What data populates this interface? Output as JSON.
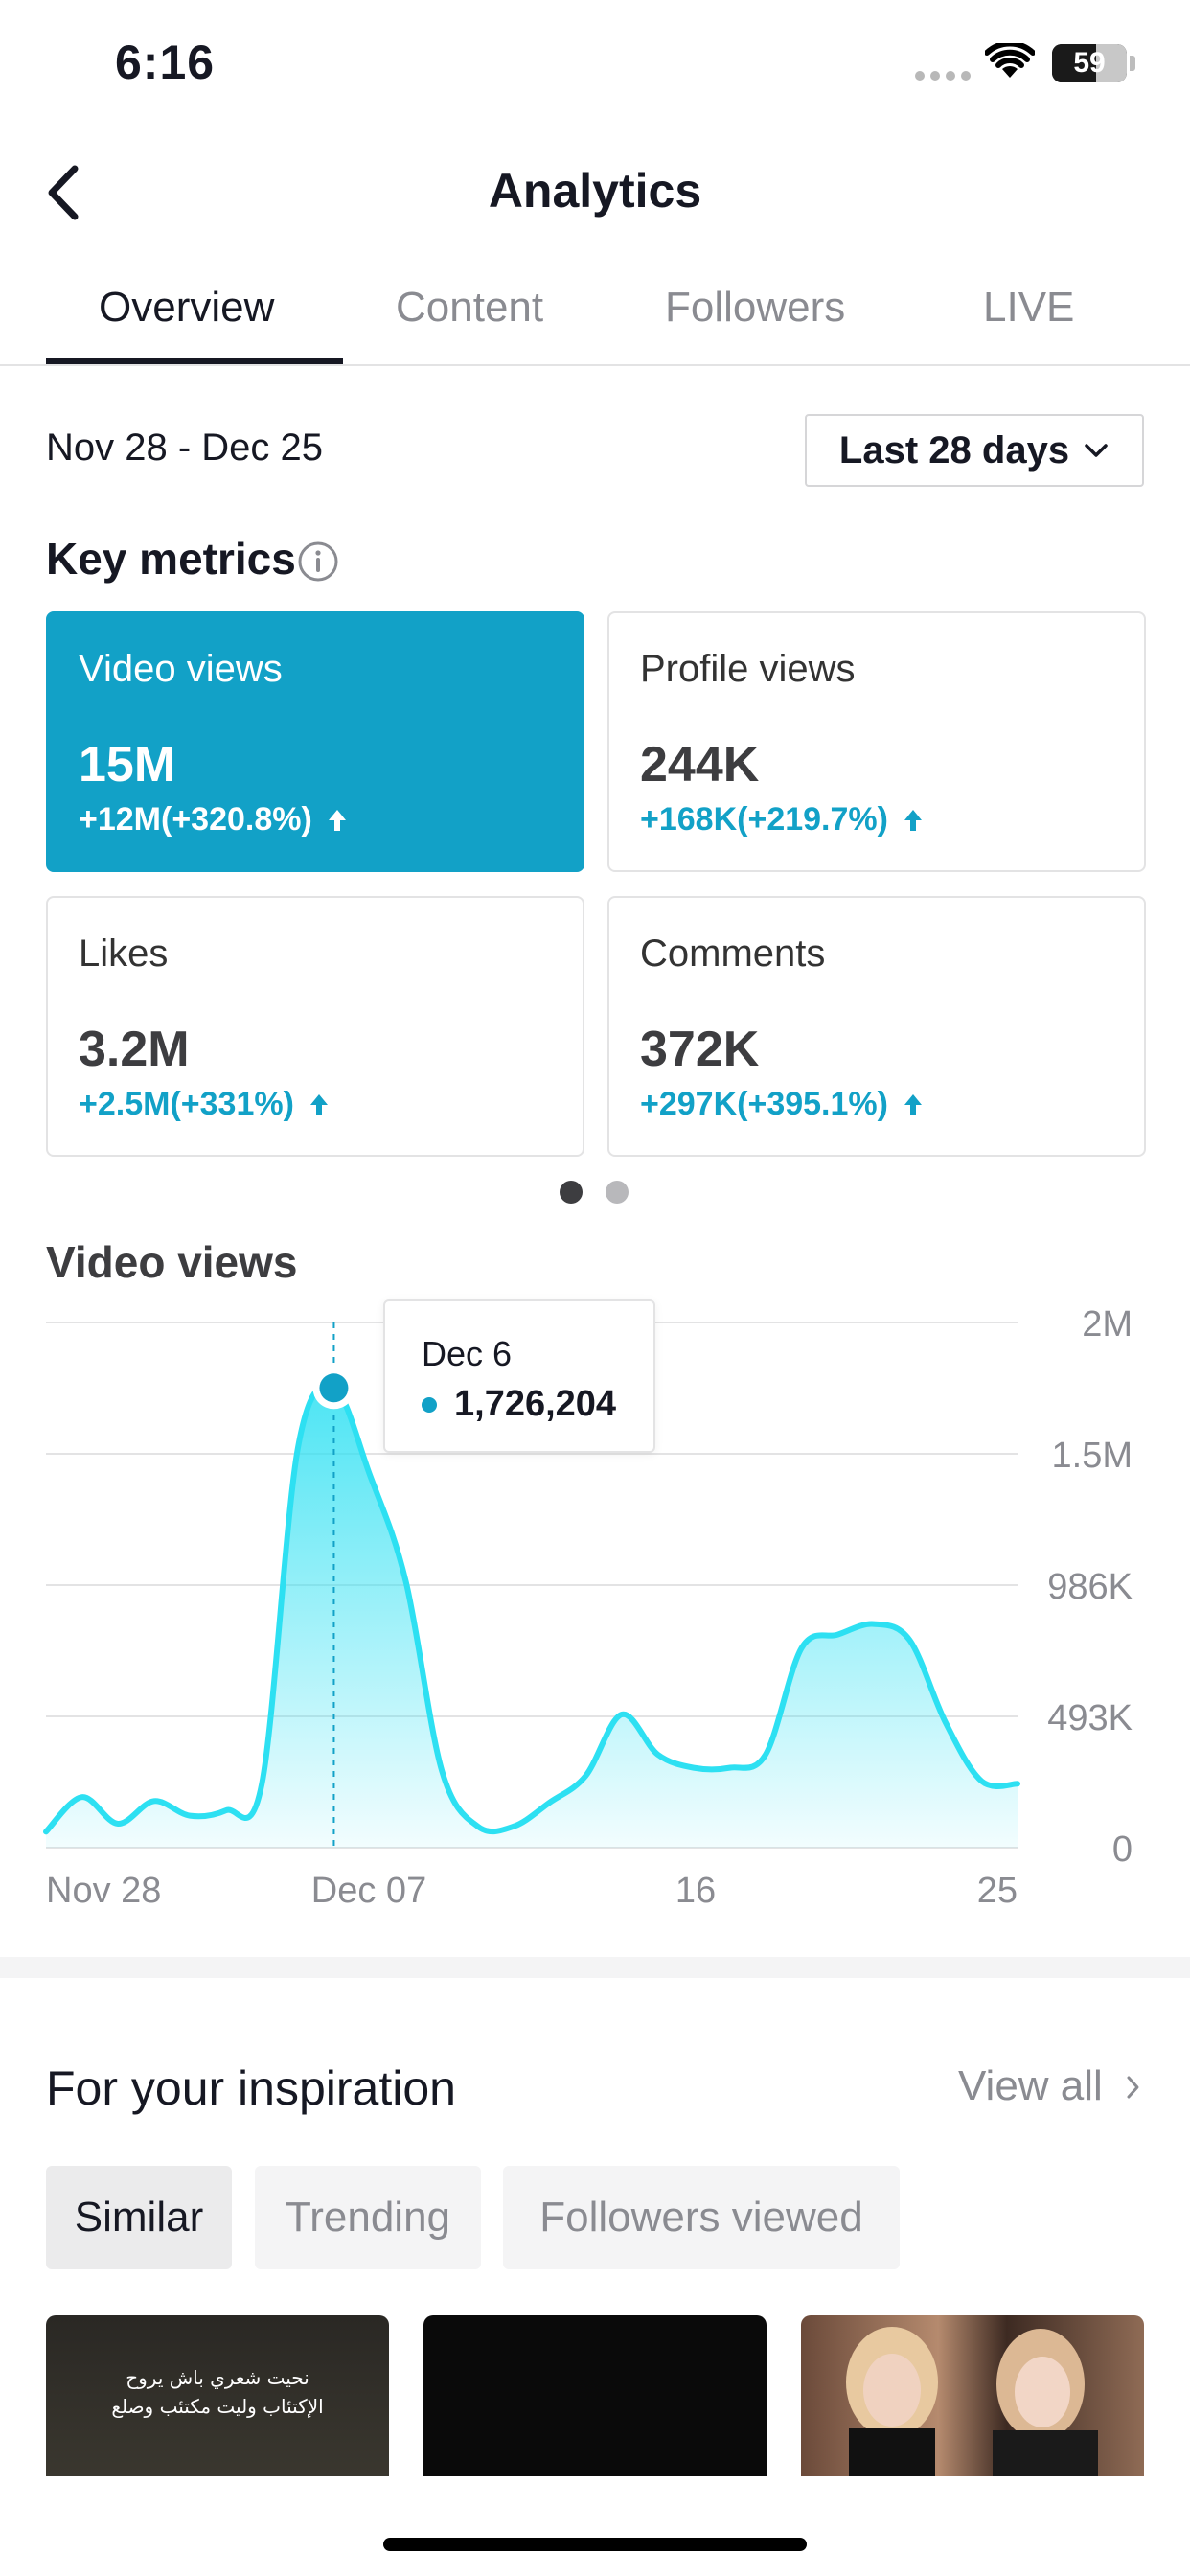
{
  "status_bar": {
    "time": "6:16",
    "battery_level": "59",
    "battery_percent": 59
  },
  "header": {
    "title": "Analytics"
  },
  "tabs": [
    {
      "label": "Overview",
      "active": true
    },
    {
      "label": "Content",
      "active": false
    },
    {
      "label": "Followers",
      "active": false
    },
    {
      "label": "LIVE",
      "active": false
    }
  ],
  "date_range": "Nov 28 - Dec 25",
  "period_select": {
    "value": "Last 28 days"
  },
  "key_metrics": {
    "title": "Key metrics",
    "cards": [
      {
        "label": "Video views",
        "value": "15M",
        "change": "+12M(+320.8%)",
        "selected": true
      },
      {
        "label": "Profile views",
        "value": "244K",
        "change": "+168K(+219.7%)",
        "selected": false
      },
      {
        "label": "Likes",
        "value": "3.2M",
        "change": "+2.5M(+331%)",
        "selected": false
      },
      {
        "label": "Comments",
        "value": "372K",
        "change": "+297K(+395.1%)",
        "selected": false
      }
    ],
    "pager": {
      "pages": 2,
      "current": 1
    }
  },
  "chart_section": {
    "title": "Video views"
  },
  "chart_data": {
    "type": "area",
    "title": "Video views",
    "x": [
      "Nov 28",
      "Nov 29",
      "Nov 30",
      "Dec 01",
      "Dec 02",
      "Dec 03",
      "Dec 04",
      "Dec 05",
      "Dec 06",
      "Dec 07",
      "Dec 08",
      "Dec 09",
      "Dec 10",
      "Dec 11",
      "Dec 12",
      "Dec 13",
      "Dec 14",
      "Dec 15",
      "Dec 16",
      "Dec 17",
      "Dec 18",
      "Dec 19",
      "Dec 20",
      "Dec 21",
      "Dec 22",
      "Dec 23",
      "Dec 24",
      "Dec 25"
    ],
    "series": [
      {
        "values": [
          60000,
          190000,
          90000,
          175000,
          120000,
          140000,
          240000,
          1500000,
          1726204,
          1400000,
          1000000,
          290000,
          80000,
          80000,
          170000,
          270000,
          500000,
          350000,
          300000,
          300000,
          350000,
          750000,
          800000,
          840000,
          780000,
          470000,
          250000,
          240000
        ]
      }
    ],
    "x_ticks": [
      "Nov 28",
      "Dec 07",
      "16",
      "25"
    ],
    "y_ticks": [
      "0",
      "493K",
      "986K",
      "1.5M",
      "2M"
    ],
    "y_tick_values": [
      0,
      493000,
      986000,
      1479000,
      1972000
    ],
    "ylim": [
      0,
      1972000
    ],
    "grid": true,
    "color": "#2de0f2",
    "highlight": {
      "date": "Dec 6",
      "value": "1,726,204",
      "index": 8
    }
  },
  "inspiration": {
    "title": "For your inspiration",
    "view_all": "View all",
    "chips": [
      {
        "label": "Similar",
        "active": true
      },
      {
        "label": "Trending",
        "active": false
      },
      {
        "label": "Followers viewed",
        "active": false
      }
    ],
    "thumbnails": [
      {
        "caption_line1": "نحيت شعري باش يروح",
        "caption_line2": "الإكتئاب وليت مكتئب وصلع"
      },
      {
        "caption_line1": "",
        "caption_line2": ""
      },
      {
        "caption_line1": "",
        "caption_line2": ""
      }
    ]
  },
  "colors": {
    "accent": "#12a1c7",
    "line": "#2de0f2",
    "text": "#161823",
    "muted": "#8a8b91"
  }
}
